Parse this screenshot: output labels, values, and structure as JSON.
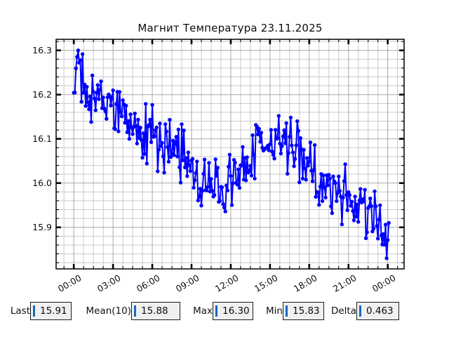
{
  "window": {
    "background": "#ffffff"
  },
  "chart_data": {
    "type": "line",
    "title": "Магнит Температура 23.11.2025",
    "series_color": "#0000ff",
    "marker": "circle",
    "grid": {
      "major_color": "#a8a8a8",
      "minor_color": "#c9c9c9",
      "on": true
    },
    "axis_color": "#000000",
    "x_axis": {
      "tick_hours": [
        0,
        3,
        6,
        9,
        12,
        15,
        18,
        21,
        24
      ],
      "tick_labels": [
        "00:00",
        "03:00",
        "06:00",
        "09:00",
        "12:00",
        "15:00",
        "18:00",
        "21:00",
        "00:00"
      ],
      "minor_step_hours": 0.75,
      "range_hours": [
        -1.35,
        25.25
      ]
    },
    "y_axis": {
      "ticks": [
        16.3,
        16.2,
        16.1,
        16.0,
        15.9
      ],
      "tick_labels": [
        "16.3",
        "16.2",
        "16.1",
        "16.0",
        "15.9"
      ],
      "minor_step": 0.02,
      "range": [
        15.806,
        16.325
      ]
    },
    "series": {
      "name": "магнит-температура",
      "sample_minutes": 5,
      "start_hour": 0,
      "end_hour": 24.12,
      "noise_amplitude": 0.085,
      "seed": 20251123,
      "clamp": [
        15.83,
        16.3
      ],
      "trend_points": [
        [
          0,
          16.2
        ],
        [
          0.3,
          16.24
        ],
        [
          1,
          16.21
        ],
        [
          2,
          16.2
        ],
        [
          3,
          16.17
        ],
        [
          4,
          16.14
        ],
        [
          5,
          16.12
        ],
        [
          6,
          16.11
        ],
        [
          7,
          16.08
        ],
        [
          8,
          16.06
        ],
        [
          9,
          16.03
        ],
        [
          10,
          16.01
        ],
        [
          11,
          15.99
        ],
        [
          11.7,
          15.985
        ],
        [
          12.5,
          16.01
        ],
        [
          13.5,
          16.05
        ],
        [
          14.5,
          16.08
        ],
        [
          15.5,
          16.1
        ],
        [
          16.5,
          16.08
        ],
        [
          17.5,
          16.06
        ],
        [
          18.5,
          16.03
        ],
        [
          19.5,
          16.0
        ],
        [
          20.5,
          15.97
        ],
        [
          21.5,
          15.95
        ],
        [
          22.5,
          15.92
        ],
        [
          23.5,
          15.89
        ],
        [
          24.12,
          15.87
        ]
      ],
      "pinned_points": [
        [
          0.33,
          16.3
        ],
        [
          23.9,
          15.83
        ],
        [
          24.12,
          15.91
        ]
      ]
    },
    "stats": [
      {
        "id": "last",
        "label": "Last",
        "value": "15.91"
      },
      {
        "id": "mean10",
        "label": "Mean(10)",
        "value": "15.88"
      },
      {
        "id": "max",
        "label": "Max",
        "value": "16.30"
      },
      {
        "id": "min",
        "label": "Min",
        "value": "15.83"
      },
      {
        "id": "delta",
        "label": "Delta",
        "value": "0.463"
      }
    ],
    "indicator_style": {
      "box_bg": "#f0f0f0",
      "box_border": "#1b1b1b",
      "cursor_color": "#1668c0"
    }
  }
}
